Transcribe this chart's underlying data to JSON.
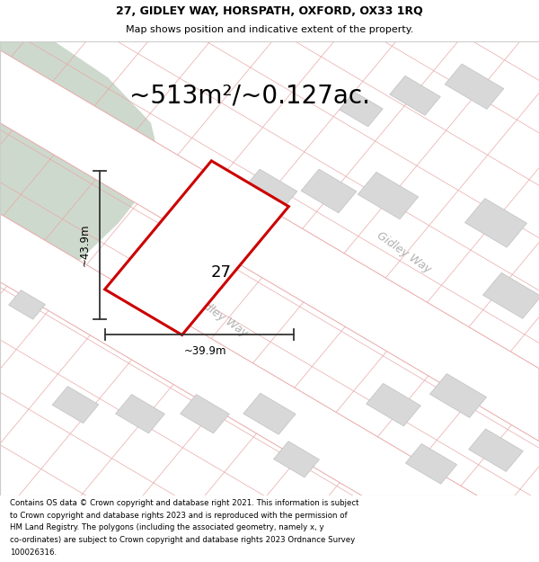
{
  "title_line1": "27, GIDLEY WAY, HORSPATH, OXFORD, OX33 1RQ",
  "title_line2": "Map shows position and indicative extent of the property.",
  "area_text": "~513m²/~0.127ac.",
  "label_27": "27",
  "dim_height": "~43.9m",
  "dim_width": "~39.9m",
  "street_label": "Gidley Way",
  "footer_text": "Contains OS data © Crown copyright and database right 2021. This information is subject to Crown copyright and database rights 2023 and is reproduced with the permission of HM Land Registry. The polygons (including the associated geometry, namely x, y co-ordinates) are subject to Crown copyright and database rights 2023 Ordnance Survey 100026316.",
  "map_bg": "#ffffff",
  "green_color": "#cdd9cc",
  "plot_color": "#cc0000",
  "building_fill": "#d8d8d8",
  "building_edge": "#c0c0c0",
  "cadastral_line_color": "#e8a8a8",
  "road_line_color": "#e8a8a8",
  "dim_line_color": "#333333",
  "title_fontsize": 9.0,
  "subtitle_fontsize": 8.0,
  "area_fontsize": 20,
  "label_fontsize": 13,
  "dim_fontsize": 8.5,
  "street_fontsize": 9,
  "footer_fontsize": 6.2
}
